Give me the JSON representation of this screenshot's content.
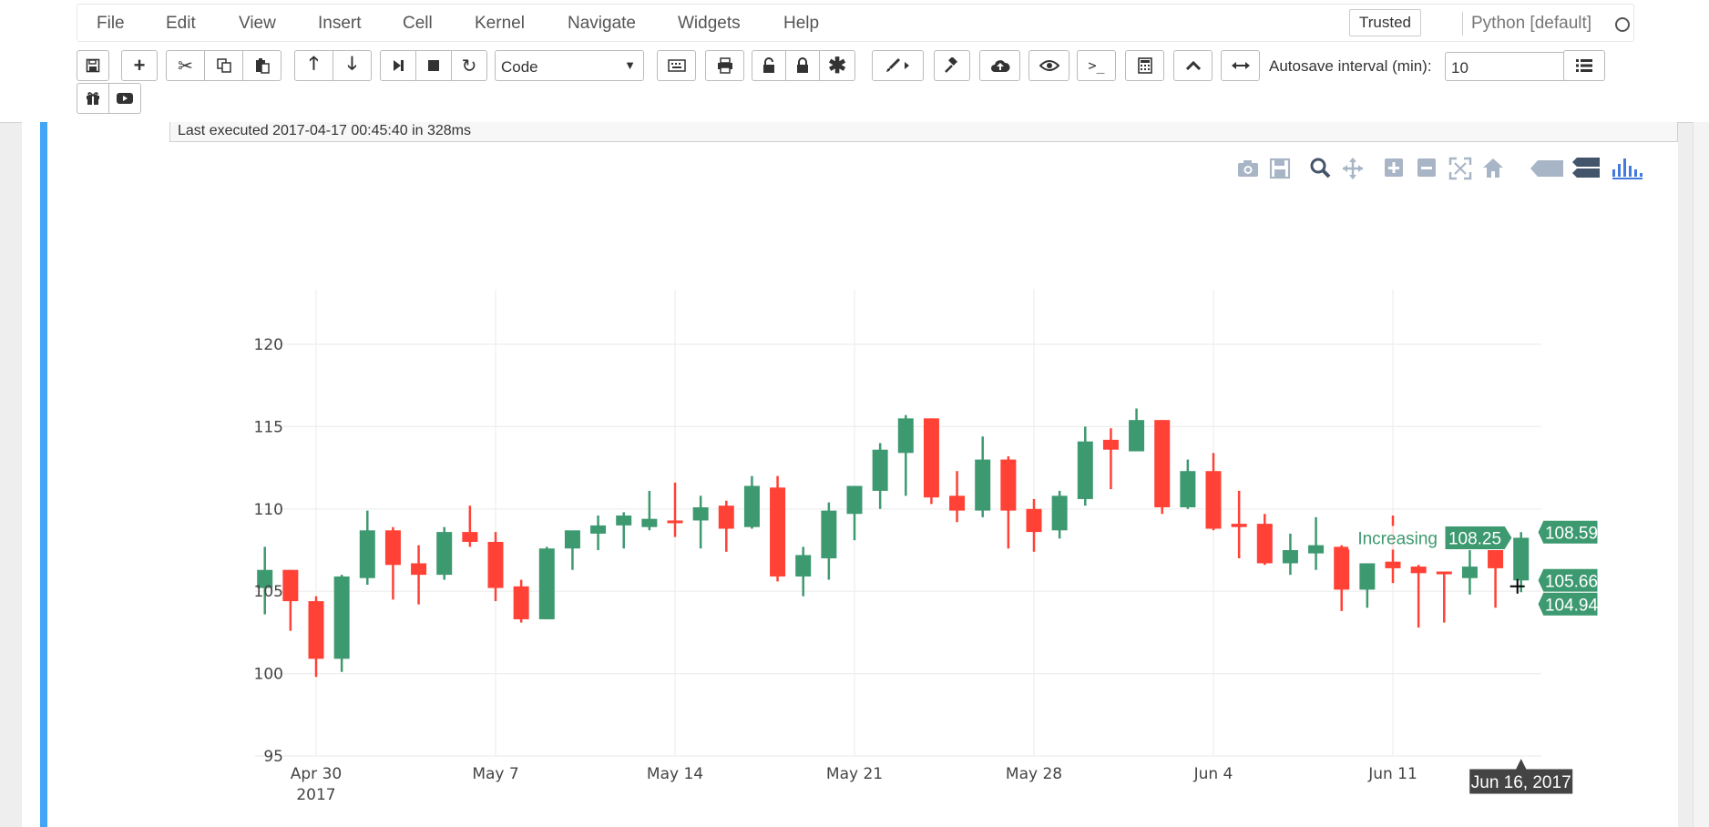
{
  "menu": {
    "items": [
      "File",
      "Edit",
      "View",
      "Insert",
      "Cell",
      "Kernel",
      "Navigate",
      "Widgets",
      "Help"
    ],
    "trusted": "Trusted",
    "kernel": "Python [default]"
  },
  "toolbar": {
    "cell_type": "Code",
    "autosave_label": "Autosave interval (min):",
    "autosave_value": "10",
    "terminal_glyph": ">_"
  },
  "cell": {
    "last_executed": "Last executed 2017-04-17 00:45:40 in 328ms"
  },
  "colors": {
    "increasing": "#3d9970",
    "decreasing": "#ff4136",
    "accent": "#42a5f5"
  },
  "modebar_icons": [
    "camera-icon",
    "save-icon",
    "zoom-icon",
    "pan-icon",
    "zoom-in-icon",
    "zoom-out-icon",
    "autoscale-icon",
    "reset-icon",
    "compare-hover-icon",
    "closest-hover-icon",
    "plotly-logo-icon"
  ],
  "chart_data": {
    "type": "candlestick",
    "y_ticks": [
      95,
      100,
      105,
      110,
      115,
      120
    ],
    "x_ticks": [
      {
        "date": "2017-04-30",
        "label": "Apr 30",
        "sublabel": "2017"
      },
      {
        "date": "2017-05-07",
        "label": "May 7"
      },
      {
        "date": "2017-05-14",
        "label": "May 14"
      },
      {
        "date": "2017-05-21",
        "label": "May 21"
      },
      {
        "date": "2017-05-28",
        "label": "May 28"
      },
      {
        "date": "2017-06-04",
        "label": "Jun 4"
      },
      {
        "date": "2017-06-11",
        "label": "Jun 11"
      }
    ],
    "ylim": [
      95,
      122
    ],
    "xlim": [
      "2017-04-30",
      "2017-06-18"
    ],
    "candles": [
      {
        "date": "2017-04-28",
        "open": 105.2,
        "high": 107.7,
        "low": 103.6,
        "close": 106.3
      },
      {
        "date": "2017-04-29",
        "open": 106.3,
        "high": 106.3,
        "low": 102.6,
        "close": 104.4
      },
      {
        "date": "2017-04-30",
        "open": 104.4,
        "high": 104.7,
        "low": 99.8,
        "close": 100.9
      },
      {
        "date": "2017-05-01",
        "open": 100.9,
        "high": 106.0,
        "low": 100.1,
        "close": 105.9
      },
      {
        "date": "2017-05-02",
        "open": 105.8,
        "high": 109.9,
        "low": 105.4,
        "close": 108.7
      },
      {
        "date": "2017-05-03",
        "open": 108.7,
        "high": 108.9,
        "low": 104.5,
        "close": 106.6
      },
      {
        "date": "2017-05-04",
        "open": 106.7,
        "high": 107.8,
        "low": 104.2,
        "close": 106.0
      },
      {
        "date": "2017-05-05",
        "open": 106.0,
        "high": 108.9,
        "low": 105.7,
        "close": 108.6
      },
      {
        "date": "2017-05-06",
        "open": 108.6,
        "high": 110.2,
        "low": 107.7,
        "close": 108.0
      },
      {
        "date": "2017-05-07",
        "open": 108.0,
        "high": 108.6,
        "low": 104.4,
        "close": 105.2
      },
      {
        "date": "2017-05-08",
        "open": 105.3,
        "high": 105.7,
        "low": 103.1,
        "close": 103.3
      },
      {
        "date": "2017-05-09",
        "open": 103.3,
        "high": 107.7,
        "low": 103.3,
        "close": 107.6
      },
      {
        "date": "2017-05-10",
        "open": 107.6,
        "high": 108.6,
        "low": 106.3,
        "close": 108.7
      },
      {
        "date": "2017-05-11",
        "open": 108.5,
        "high": 109.6,
        "low": 107.5,
        "close": 109.0
      },
      {
        "date": "2017-05-12",
        "open": 109.0,
        "high": 109.8,
        "low": 107.6,
        "close": 109.6
      },
      {
        "date": "2017-05-13",
        "open": 108.9,
        "high": 111.1,
        "low": 108.7,
        "close": 109.4
      },
      {
        "date": "2017-05-14",
        "open": 109.3,
        "high": 111.6,
        "low": 108.3,
        "close": 109.2
      },
      {
        "date": "2017-05-15",
        "open": 109.3,
        "high": 110.8,
        "low": 107.6,
        "close": 110.1
      },
      {
        "date": "2017-05-16",
        "open": 110.2,
        "high": 110.5,
        "low": 107.4,
        "close": 108.8
      },
      {
        "date": "2017-05-17",
        "open": 108.9,
        "high": 112.0,
        "low": 108.8,
        "close": 111.4
      },
      {
        "date": "2017-05-18",
        "open": 111.3,
        "high": 112.0,
        "low": 105.6,
        "close": 105.9
      },
      {
        "date": "2017-05-19",
        "open": 105.9,
        "high": 107.7,
        "low": 104.7,
        "close": 107.2
      },
      {
        "date": "2017-05-20",
        "open": 107.0,
        "high": 110.4,
        "low": 105.7,
        "close": 109.9
      },
      {
        "date": "2017-05-21",
        "open": 109.7,
        "high": 111.4,
        "low": 108.1,
        "close": 111.4
      },
      {
        "date": "2017-05-22",
        "open": 111.1,
        "high": 114.0,
        "low": 110.0,
        "close": 113.6
      },
      {
        "date": "2017-05-23",
        "open": 113.4,
        "high": 115.7,
        "low": 110.8,
        "close": 115.5
      },
      {
        "date": "2017-05-24",
        "open": 115.5,
        "high": 115.5,
        "low": 110.3,
        "close": 110.7
      },
      {
        "date": "2017-05-25",
        "open": 110.8,
        "high": 112.3,
        "low": 109.2,
        "close": 109.9
      },
      {
        "date": "2017-05-26",
        "open": 109.9,
        "high": 114.4,
        "low": 109.5,
        "close": 113.0
      },
      {
        "date": "2017-05-27",
        "open": 113.0,
        "high": 113.2,
        "low": 107.6,
        "close": 109.9
      },
      {
        "date": "2017-05-28",
        "open": 110.0,
        "high": 110.6,
        "low": 107.4,
        "close": 108.6
      },
      {
        "date": "2017-05-29",
        "open": 108.7,
        "high": 111.1,
        "low": 108.2,
        "close": 110.8
      },
      {
        "date": "2017-05-30",
        "open": 110.6,
        "high": 115.0,
        "low": 110.2,
        "close": 114.1
      },
      {
        "date": "2017-05-31",
        "open": 114.2,
        "high": 114.9,
        "low": 111.2,
        "close": 113.6
      },
      {
        "date": "2017-06-01",
        "open": 113.5,
        "high": 116.1,
        "low": 113.5,
        "close": 115.4
      },
      {
        "date": "2017-06-02",
        "open": 115.4,
        "high": 115.4,
        "low": 109.7,
        "close": 110.1
      },
      {
        "date": "2017-06-03",
        "open": 110.1,
        "high": 113.0,
        "low": 110.0,
        "close": 112.3
      },
      {
        "date": "2017-06-04",
        "open": 112.3,
        "high": 113.4,
        "low": 108.7,
        "close": 108.8
      },
      {
        "date": "2017-06-05",
        "open": 109.1,
        "high": 111.1,
        "low": 107.0,
        "close": 108.9
      },
      {
        "date": "2017-06-06",
        "open": 109.1,
        "high": 109.7,
        "low": 106.6,
        "close": 106.7
      },
      {
        "date": "2017-06-07",
        "open": 106.7,
        "high": 108.5,
        "low": 106.0,
        "close": 107.5
      },
      {
        "date": "2017-06-08",
        "open": 107.3,
        "high": 109.5,
        "low": 106.3,
        "close": 107.8
      },
      {
        "date": "2017-06-09",
        "open": 107.7,
        "high": 107.8,
        "low": 103.8,
        "close": 105.1
      },
      {
        "date": "2017-06-10",
        "open": 105.1,
        "high": 106.7,
        "low": 104.0,
        "close": 106.7
      },
      {
        "date": "2017-06-11",
        "open": 106.8,
        "high": 109.6,
        "low": 105.5,
        "close": 106.4
      },
      {
        "date": "2017-06-12",
        "open": 106.5,
        "high": 106.6,
        "low": 102.8,
        "close": 106.1
      },
      {
        "date": "2017-06-13",
        "open": 106.2,
        "high": 106.2,
        "low": 103.1,
        "close": 106.1
      },
      {
        "date": "2017-06-14",
        "open": 105.8,
        "high": 108.0,
        "low": 104.8,
        "close": 106.5
      },
      {
        "date": "2017-06-15",
        "open": 107.7,
        "high": 108.9,
        "low": 104.0,
        "close": 106.4
      },
      {
        "date": "2017-06-16",
        "open": 105.66,
        "high": 108.59,
        "low": 104.94,
        "close": 108.25
      }
    ],
    "hover": {
      "date_label": "Jun 16, 2017",
      "series": "Increasing",
      "high": "108.59",
      "close": "108.25",
      "open": "105.66",
      "low": "104.94"
    },
    "grid": true
  }
}
